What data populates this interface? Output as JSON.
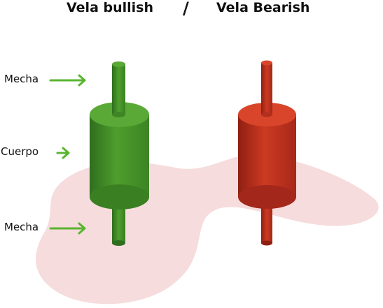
{
  "titles": {
    "bullish": "Vela bullish",
    "separator": "/",
    "bearish": "Vela Bearish"
  },
  "labels": {
    "wick_top": "Mecha",
    "body": "Cuerpo",
    "wick_bottom": "Mecha"
  },
  "colors": {
    "bullish": "#4a9a2a",
    "bearish": "#c8301e",
    "arrow": "#59b530",
    "background_blob": "#f6dcdc"
  }
}
